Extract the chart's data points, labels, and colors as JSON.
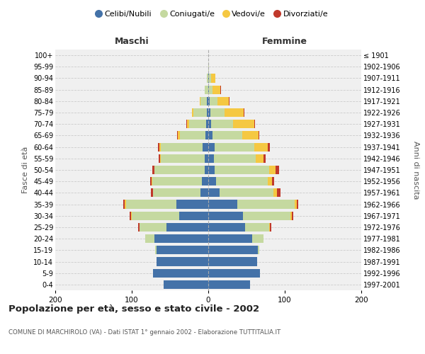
{
  "age_groups": [
    "0-4",
    "5-9",
    "10-14",
    "15-19",
    "20-24",
    "25-29",
    "30-34",
    "35-39",
    "40-44",
    "45-49",
    "50-54",
    "55-59",
    "60-64",
    "65-69",
    "70-74",
    "75-79",
    "80-84",
    "85-89",
    "90-94",
    "95-99",
    "100+"
  ],
  "birth_years": [
    "1997-2001",
    "1992-1996",
    "1987-1991",
    "1982-1986",
    "1977-1981",
    "1972-1976",
    "1967-1971",
    "1962-1966",
    "1957-1961",
    "1952-1956",
    "1947-1951",
    "1942-1946",
    "1937-1941",
    "1932-1936",
    "1927-1931",
    "1922-1926",
    "1917-1921",
    "1912-1916",
    "1907-1911",
    "1902-1906",
    "≤ 1901"
  ],
  "male": {
    "celibi": [
      58,
      72,
      68,
      68,
      70,
      55,
      38,
      42,
      10,
      8,
      5,
      5,
      7,
      4,
      3,
      2,
      2,
      0,
      0,
      0,
      0
    ],
    "coniugati": [
      0,
      0,
      0,
      1,
      12,
      35,
      62,
      65,
      62,
      65,
      65,
      57,
      55,
      33,
      22,
      17,
      8,
      5,
      2,
      0,
      0
    ],
    "vedovi": [
      0,
      0,
      0,
      0,
      0,
      0,
      1,
      2,
      0,
      1,
      0,
      1,
      2,
      3,
      3,
      2,
      1,
      0,
      0,
      0,
      0
    ],
    "divorziati": [
      0,
      0,
      0,
      0,
      0,
      2,
      2,
      2,
      3,
      2,
      3,
      2,
      2,
      1,
      1,
      0,
      0,
      0,
      0,
      0,
      0
    ]
  },
  "female": {
    "nubili": [
      55,
      68,
      64,
      65,
      57,
      48,
      45,
      38,
      15,
      10,
      8,
      7,
      8,
      6,
      4,
      3,
      2,
      1,
      1,
      0,
      0
    ],
    "coniugate": [
      0,
      0,
      0,
      2,
      15,
      32,
      62,
      75,
      70,
      68,
      72,
      55,
      52,
      38,
      28,
      18,
      10,
      5,
      3,
      1,
      0
    ],
    "vedove": [
      0,
      0,
      0,
      0,
      0,
      1,
      2,
      3,
      5,
      5,
      8,
      10,
      18,
      22,
      28,
      25,
      15,
      10,
      5,
      0,
      0
    ],
    "divorziate": [
      0,
      0,
      0,
      0,
      0,
      1,
      2,
      2,
      4,
      3,
      5,
      3,
      3,
      1,
      1,
      1,
      1,
      1,
      0,
      0,
      0
    ]
  },
  "colors": {
    "celibi": "#4472a8",
    "coniugati": "#c5d9a0",
    "vedovi": "#f5c842",
    "divorziati": "#c0392b"
  },
  "title": "Popolazione per età, sesso e stato civile - 2002",
  "subtitle": "COMUNE DI MARCHIROLO (VA) - Dati ISTAT 1° gennaio 2002 - Elaborazione TUTTITALIA.IT",
  "ylabel_left": "Fasce di età",
  "ylabel_right": "Anni di nascita",
  "xlabel_maschi": "Maschi",
  "xlabel_femmine": "Femmine",
  "xlim": 200,
  "background_color": "#f0f0f0",
  "legend_labels": [
    "Celibi/Nubili",
    "Coniugati/e",
    "Vedovi/e",
    "Divorziati/e"
  ]
}
